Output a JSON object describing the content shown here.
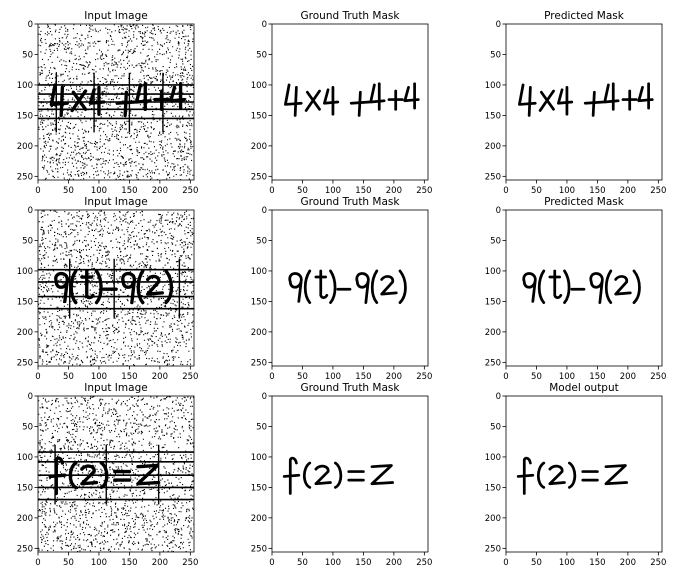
{
  "figure": {
    "panels": [
      {
        "title": "Input Image",
        "content": "noisy-input",
        "expression": "4X4 +4+4",
        "colors": {
          "bg": "#ffffff",
          "ink": "#000000"
        }
      },
      {
        "title": "Ground Truth Mask",
        "content": "mask",
        "expression": "4X4 +4+4",
        "colors": {
          "bg": "#ffffff",
          "ink": "#000000"
        }
      },
      {
        "title": "Predicted Mask",
        "content": "mask",
        "expression": "4X4 +4+4",
        "colors": {
          "bg": "#ffffff",
          "ink": "#000000"
        }
      },
      {
        "title": "Input Image",
        "content": "noisy-input",
        "expression": "g(t)-g(z)",
        "colors": {
          "bg": "#ffffff",
          "ink": "#000000"
        }
      },
      {
        "title": "Ground Truth Mask",
        "content": "mask",
        "expression": "g(t)-g(z)",
        "colors": {
          "bg": "#ffffff",
          "ink": "#000000"
        }
      },
      {
        "title": "Predicted Mask",
        "content": "mask",
        "expression": "g(t)-g(z)",
        "colors": {
          "bg": "#ffffff",
          "ink": "#000000"
        }
      },
      {
        "title": "Input Image",
        "content": "noisy-input",
        "expression": "f(z)=z",
        "colors": {
          "bg": "#ffffff",
          "ink": "#000000"
        }
      },
      {
        "title": "Ground Truth Mask",
        "content": "mask",
        "expression": "f(z)=z",
        "colors": {
          "bg": "#ffffff",
          "ink": "#000000"
        }
      },
      {
        "title": "Model output",
        "content": "mask",
        "expression": "f(z)=z",
        "colors": {
          "bg": "#ffffff",
          "ink": "#000000"
        }
      }
    ]
  },
  "chart_data": {
    "type": "heatmap",
    "grid": "3x3 image panels",
    "xlim": [
      0,
      256
    ],
    "ylim": [
      256,
      0
    ],
    "xticks": [
      "0",
      "50",
      "100",
      "150",
      "200",
      "250"
    ],
    "yticks": [
      "0",
      "50",
      "100",
      "150",
      "200",
      "250"
    ],
    "panel_titles": [
      "Input Image",
      "Ground Truth Mask",
      "Predicted Mask",
      "Input Image",
      "Ground Truth Mask",
      "Predicted Mask",
      "Input Image",
      "Ground Truth Mask",
      "Model output"
    ],
    "rows": [
      {
        "expression": "4X4 +4+4",
        "text_y_center": 130
      },
      {
        "expression": "g(t)-g(z)",
        "text_y_center": 130
      },
      {
        "expression": "f(z)=z",
        "text_y_center": 130
      }
    ],
    "input_noise_lines": [
      {
        "horizontal_y": [
          100,
          115,
          128,
          140,
          155
        ],
        "vertical_x": [
          30,
          92,
          150,
          205
        ]
      },
      {
        "horizontal_y": [
          98,
          118,
          142,
          162
        ],
        "vertical_x": [
          52,
          125,
          232
        ]
      },
      {
        "horizontal_y": [
          92,
          108,
          130,
          150,
          170
        ],
        "vertical_x": [
          28,
          112,
          198
        ]
      }
    ],
    "colormap": "gray"
  }
}
